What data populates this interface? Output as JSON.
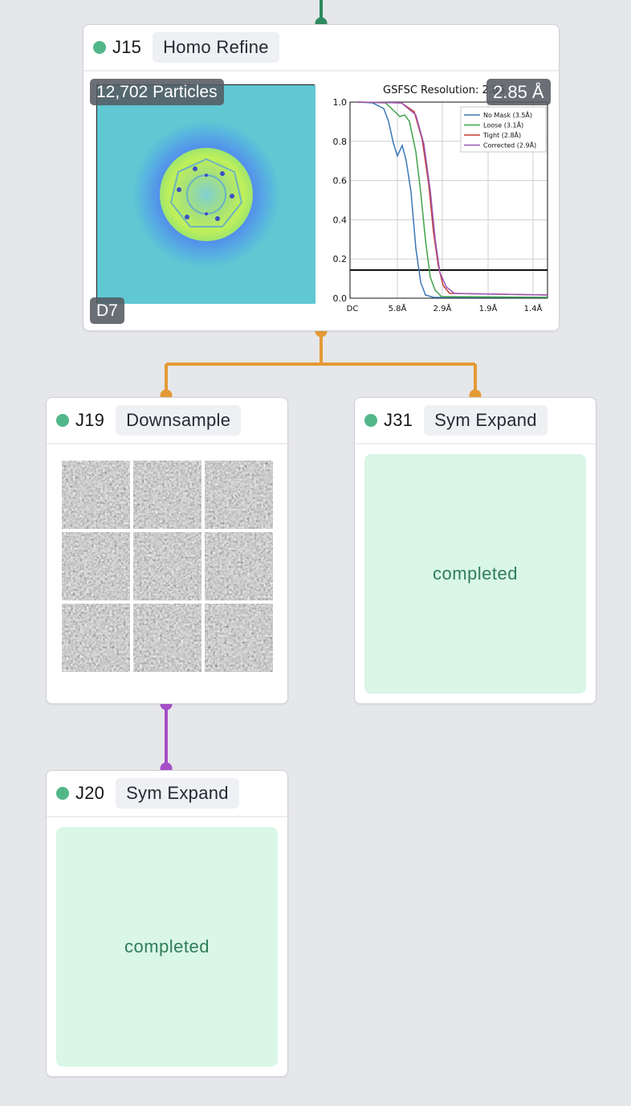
{
  "nodes": {
    "j15": {
      "id": "J15",
      "type": "Homo Refine",
      "particles_label": "12,702 Particles",
      "symmetry": "D7",
      "resolution_label": "2.85 Å",
      "fsc": {
        "title": "GSFSC Resolution: 2.85",
        "y_ticks": [
          "0.0",
          "0.2",
          "0.4",
          "0.6",
          "0.8",
          "1.0"
        ],
        "x_ticks": [
          "DC",
          "5.8Å",
          "2.9Å",
          "1.9Å",
          "1.4Å"
        ],
        "legend": [
          "No Mask (3.5Å)",
          "Loose (3.1Å)",
          "Tight (2.8Å)",
          "Corrected (2.9Å)"
        ]
      }
    },
    "j19": {
      "id": "J19",
      "type": "Downsample"
    },
    "j31": {
      "id": "J31",
      "type": "Sym Expand",
      "status": "completed"
    },
    "j20": {
      "id": "J20",
      "type": "Sym Expand",
      "status": "completed"
    }
  },
  "colors": {
    "status_dot": "#52b788",
    "edge_top": "#2f8a5f",
    "edge_orange": "#e49a36",
    "edge_purple": "#a54fc6",
    "completed_bg": "#d9f6e6",
    "completed_text": "#2f7d57",
    "fsc_no_mask": "#3a77b5",
    "fsc_loose": "#3fa34a",
    "fsc_tight": "#c83a32",
    "fsc_corrected": "#9a59b8"
  },
  "chart_data": {
    "type": "line",
    "title": "GSFSC Resolution: 2.85",
    "x": [
      "DC",
      "5.8Å",
      "2.9Å",
      "1.9Å",
      "1.4Å"
    ],
    "ylim": [
      0,
      1
    ],
    "threshold": 0.143,
    "legend_position": "top-right",
    "grid": true,
    "series": [
      {
        "name": "No Mask (3.5Å)",
        "values": [
          1.0,
          0.68,
          0.0,
          0.0,
          0.0
        ]
      },
      {
        "name": "Loose (3.1Å)",
        "values": [
          1.0,
          0.93,
          0.02,
          0.0,
          0.0
        ]
      },
      {
        "name": "Tight (2.8Å)",
        "values": [
          1.0,
          1.0,
          0.1,
          0.01,
          0.01
        ]
      },
      {
        "name": "Corrected (2.9Å)",
        "values": [
          1.0,
          1.0,
          0.08,
          0.01,
          0.01
        ]
      }
    ]
  }
}
